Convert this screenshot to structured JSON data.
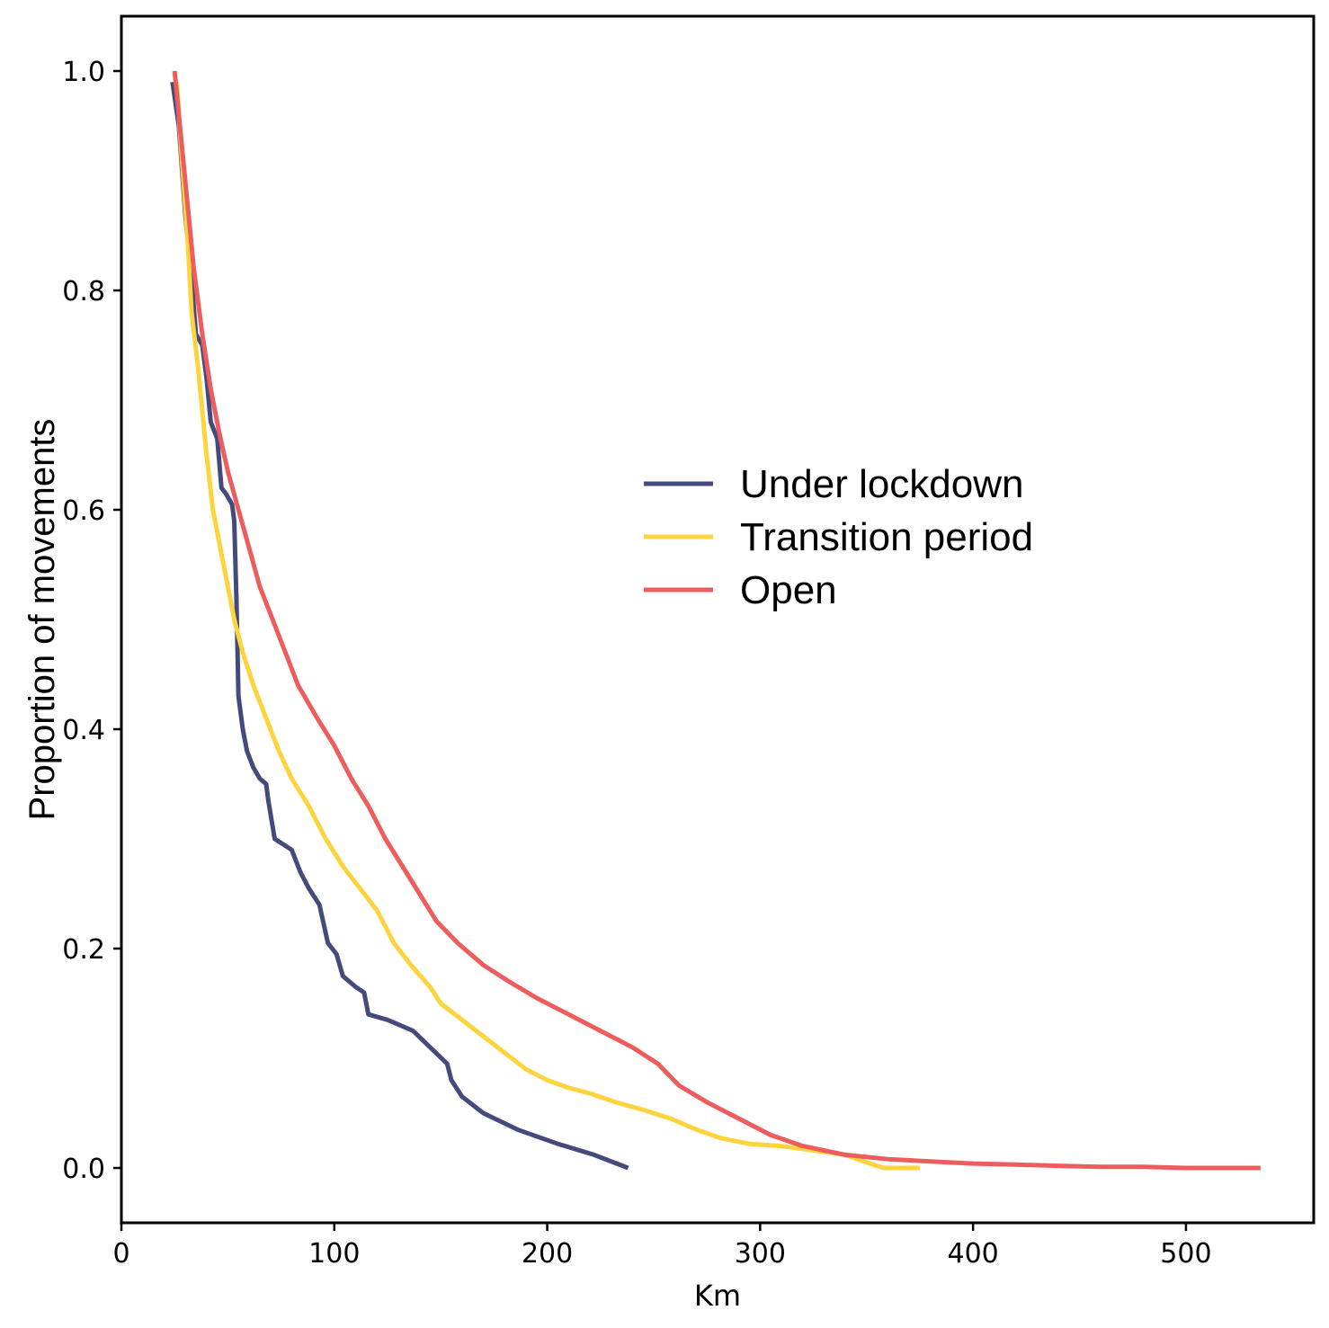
{
  "chart_data": {
    "type": "line",
    "xlabel": "Km",
    "ylabel": "Proportion of movements",
    "xlim": [
      0,
      560
    ],
    "ylim": [
      -0.05,
      1.05
    ],
    "xticks": [
      0,
      100,
      200,
      300,
      400,
      500
    ],
    "xtick_labels": [
      "0",
      "100",
      "200",
      "300",
      "400",
      "500"
    ],
    "yticks": [
      0.0,
      0.2,
      0.4,
      0.6,
      0.8,
      1.0
    ],
    "ytick_labels": [
      "0.0",
      "0.2",
      "0.4",
      "0.6",
      "0.8",
      "1.0"
    ],
    "grid": false,
    "legend_position": "center-right",
    "series": [
      {
        "name": "Under lockdown",
        "color": "#454a7c",
        "points": [
          [
            24,
            0.99
          ],
          [
            27,
            0.95
          ],
          [
            30,
            0.87
          ],
          [
            33,
            0.81
          ],
          [
            35,
            0.76
          ],
          [
            38,
            0.75
          ],
          [
            40,
            0.72
          ],
          [
            42,
            0.68
          ],
          [
            45,
            0.665
          ],
          [
            47,
            0.62
          ],
          [
            49,
            0.615
          ],
          [
            52,
            0.605
          ],
          [
            53,
            0.59
          ],
          [
            54,
            0.52
          ],
          [
            55,
            0.43
          ],
          [
            57,
            0.4
          ],
          [
            59,
            0.38
          ],
          [
            62,
            0.365
          ],
          [
            65,
            0.355
          ],
          [
            68,
            0.35
          ],
          [
            69,
            0.335
          ],
          [
            72,
            0.3
          ],
          [
            80,
            0.29
          ],
          [
            84,
            0.27
          ],
          [
            88,
            0.255
          ],
          [
            93,
            0.24
          ],
          [
            97,
            0.205
          ],
          [
            101,
            0.195
          ],
          [
            104,
            0.175
          ],
          [
            110,
            0.165
          ],
          [
            114,
            0.16
          ],
          [
            116,
            0.14
          ],
          [
            125,
            0.135
          ],
          [
            137,
            0.125
          ],
          [
            145,
            0.11
          ],
          [
            153,
            0.095
          ],
          [
            155,
            0.08
          ],
          [
            160,
            0.065
          ],
          [
            170,
            0.05
          ],
          [
            186,
            0.035
          ],
          [
            205,
            0.022
          ],
          [
            222,
            0.012
          ],
          [
            238,
            0.0
          ]
        ]
      },
      {
        "name": "Transition period",
        "color": "#fdd43e",
        "points": [
          [
            26,
            0.99
          ],
          [
            28,
            0.93
          ],
          [
            31,
            0.85
          ],
          [
            33,
            0.78
          ],
          [
            36,
            0.73
          ],
          [
            38,
            0.69
          ],
          [
            40,
            0.65
          ],
          [
            43,
            0.6
          ],
          [
            46,
            0.57
          ],
          [
            50,
            0.53
          ],
          [
            53,
            0.5
          ],
          [
            57,
            0.47
          ],
          [
            62,
            0.44
          ],
          [
            68,
            0.41
          ],
          [
            74,
            0.38
          ],
          [
            80,
            0.355
          ],
          [
            88,
            0.33
          ],
          [
            96,
            0.3
          ],
          [
            104,
            0.275
          ],
          [
            112,
            0.255
          ],
          [
            120,
            0.235
          ],
          [
            128,
            0.205
          ],
          [
            136,
            0.185
          ],
          [
            145,
            0.165
          ],
          [
            150,
            0.15
          ],
          [
            160,
            0.135
          ],
          [
            170,
            0.12
          ],
          [
            180,
            0.105
          ],
          [
            190,
            0.09
          ],
          [
            200,
            0.08
          ],
          [
            210,
            0.073
          ],
          [
            220,
            0.068
          ],
          [
            232,
            0.06
          ],
          [
            245,
            0.053
          ],
          [
            258,
            0.045
          ],
          [
            270,
            0.035
          ],
          [
            282,
            0.027
          ],
          [
            295,
            0.022
          ],
          [
            310,
            0.02
          ],
          [
            325,
            0.016
          ],
          [
            340,
            0.012
          ],
          [
            350,
            0.005
          ],
          [
            358,
            0.0
          ],
          [
            375,
            0.0
          ]
        ]
      },
      {
        "name": "Open",
        "color": "#ee5d5d",
        "points": [
          [
            25,
            1.0
          ],
          [
            28,
            0.94
          ],
          [
            31,
            0.88
          ],
          [
            34,
            0.82
          ],
          [
            38,
            0.76
          ],
          [
            42,
            0.71
          ],
          [
            46,
            0.67
          ],
          [
            50,
            0.635
          ],
          [
            55,
            0.6
          ],
          [
            60,
            0.565
          ],
          [
            65,
            0.53
          ],
          [
            70,
            0.505
          ],
          [
            76,
            0.475
          ],
          [
            83,
            0.44
          ],
          [
            92,
            0.41
          ],
          [
            100,
            0.385
          ],
          [
            108,
            0.355
          ],
          [
            116,
            0.33
          ],
          [
            124,
            0.3
          ],
          [
            132,
            0.275
          ],
          [
            140,
            0.25
          ],
          [
            148,
            0.225
          ],
          [
            158,
            0.205
          ],
          [
            170,
            0.185
          ],
          [
            182,
            0.17
          ],
          [
            195,
            0.155
          ],
          [
            210,
            0.14
          ],
          [
            225,
            0.125
          ],
          [
            240,
            0.11
          ],
          [
            252,
            0.095
          ],
          [
            262,
            0.075
          ],
          [
            275,
            0.06
          ],
          [
            290,
            0.045
          ],
          [
            305,
            0.03
          ],
          [
            320,
            0.02
          ],
          [
            340,
            0.012
          ],
          [
            360,
            0.008
          ],
          [
            380,
            0.006
          ],
          [
            400,
            0.004
          ],
          [
            420,
            0.003
          ],
          [
            440,
            0.002
          ],
          [
            460,
            0.001
          ],
          [
            480,
            0.001
          ],
          [
            500,
            0.0
          ],
          [
            535,
            0.0
          ]
        ]
      }
    ]
  }
}
